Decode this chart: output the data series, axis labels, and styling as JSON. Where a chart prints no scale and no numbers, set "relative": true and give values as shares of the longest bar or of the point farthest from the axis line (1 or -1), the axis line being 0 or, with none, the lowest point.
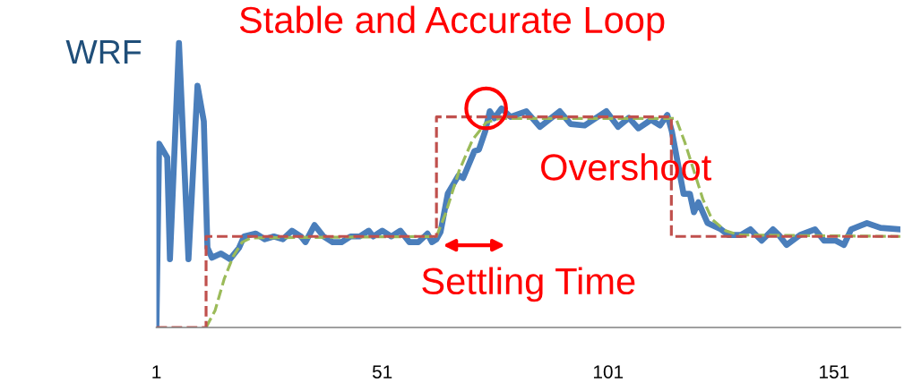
{
  "chart_data": {
    "type": "line",
    "title": "Stable and Accurate Loop",
    "ylabel": "WRF",
    "relative": true,
    "xlim": [
      1,
      165.7
    ],
    "xticks": [
      1,
      51,
      101,
      151
    ],
    "grid": false,
    "legend": false,
    "line_style": "solid",
    "marker": "none",
    "annotations": [
      {
        "text": "Overshoot",
        "x": 74,
        "y": 0.77
      },
      "Settling Time"
    ],
    "series": [
      {
        "color": "#4a7ebb",
        "x": [
          1,
          1.6,
          3.4,
          4,
          6,
          8.1,
          10.1,
          11.5,
          12.3,
          13.3,
          15.3,
          17.3,
          19.3,
          20.4,
          23,
          25,
          27,
          29,
          31,
          33,
          34,
          36,
          38,
          40,
          42,
          44,
          46,
          48,
          49,
          51,
          53,
          55,
          57,
          59,
          61,
          62,
          63,
          63.9,
          65.5,
          67.9,
          68.9,
          71.4,
          72.4,
          73.8,
          74.8,
          75.8,
          77.4,
          79.4,
          82.9,
          85.9,
          90.3,
          92.7,
          95.8,
          100.6,
          103.2,
          105.6,
          107.7,
          110.5,
          112.5,
          114.1,
          115.1,
          117.7,
          119.1,
          120,
          121,
          123,
          126,
          127.6,
          130.4,
          132.5,
          135,
          137.5,
          138.8,
          140.5,
          143.5,
          146.8,
          148.8,
          151.4,
          153.2,
          154.8,
          158.3,
          161.3,
          165.7
        ],
        "values": [
          0,
          0.646,
          0.598,
          0.24,
          1.0,
          0.24,
          0.85,
          0.725,
          0.28,
          0.245,
          0.26,
          0.24,
          0.28,
          0.32,
          0.33,
          0.31,
          0.32,
          0.31,
          0.34,
          0.32,
          0.3,
          0.36,
          0.32,
          0.3,
          0.3,
          0.32,
          0.32,
          0.34,
          0.32,
          0.34,
          0.32,
          0.34,
          0.3,
          0.3,
          0.33,
          0.3,
          0.31,
          0.335,
          0.47,
          0.535,
          0.525,
          0.62,
          0.625,
          0.69,
          0.76,
          0.735,
          0.77,
          0.74,
          0.76,
          0.705,
          0.76,
          0.715,
          0.71,
          0.76,
          0.705,
          0.737,
          0.7,
          0.73,
          0.71,
          0.747,
          0.69,
          0.47,
          0.47,
          0.405,
          0.44,
          0.367,
          0.345,
          0.325,
          0.325,
          0.345,
          0.305,
          0.345,
          0.325,
          0.29,
          0.325,
          0.345,
          0.305,
          0.305,
          0.29,
          0.345,
          0.367,
          0.35,
          0.345
        ]
      },
      {
        "color": "#c0504d",
        "line_style": "dashed",
        "x": [
          1,
          12,
          12,
          63,
          63,
          115,
          115,
          165.7
        ],
        "values": [
          0,
          0,
          0.32,
          0.32,
          0.74,
          0.74,
          0.32,
          0.32
        ]
      },
      {
        "color": "#9bbb59",
        "line_style": "dashed",
        "x": [
          12,
          14,
          16,
          18,
          20,
          22,
          63,
          65,
          68,
          71,
          74,
          77,
          116,
          118,
          120,
          122,
          124,
          127,
          130,
          165.7
        ],
        "values": [
          0,
          0.06,
          0.17,
          0.25,
          0.3,
          0.315,
          0.32,
          0.4,
          0.55,
          0.66,
          0.72,
          0.735,
          0.735,
          0.65,
          0.55,
          0.45,
          0.38,
          0.34,
          0.325,
          0.32
        ]
      }
    ]
  }
}
